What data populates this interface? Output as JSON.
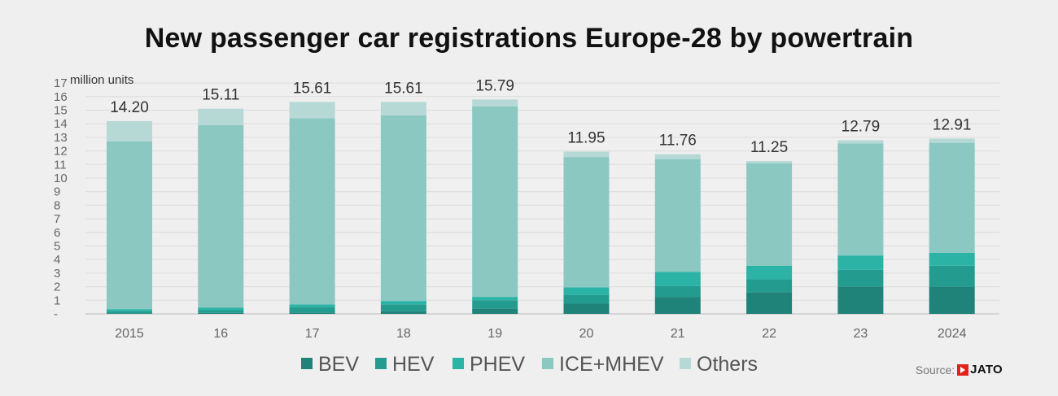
{
  "title": "New passenger car registrations Europe-28 by powertrain",
  "source": {
    "label": "Source:",
    "logo_text": "JATO"
  },
  "chart_data": {
    "type": "bar",
    "stacked": true,
    "title": "New passenger car registrations Europe-28 by powertrain",
    "unit_label": "million units",
    "xlabel": "",
    "ylabel": "",
    "ylim": [
      0,
      17
    ],
    "y_tick_labels": [
      "-",
      "1",
      "2",
      "3",
      "4",
      "5",
      "6",
      "7",
      "8",
      "9",
      "10",
      "11",
      "12",
      "13",
      "14",
      "15",
      "16",
      "17"
    ],
    "grid": true,
    "legend_position": "bottom",
    "categories": [
      "2015",
      "16",
      "17",
      "18",
      "19",
      "20",
      "21",
      "22",
      "23",
      "2024"
    ],
    "totals": [
      "14.20",
      "15.11",
      "15.61",
      "15.61",
      "15.79",
      "11.95",
      "11.76",
      "11.25",
      "12.79",
      "12.91"
    ],
    "series": [
      {
        "name": "BEV",
        "color": "#1f8379",
        "values": [
          0.05,
          0.07,
          0.1,
          0.2,
          0.4,
          0.75,
          1.25,
          1.6,
          2.0,
          2.0
        ]
      },
      {
        "name": "HEV",
        "color": "#239c8f",
        "values": [
          0.15,
          0.2,
          0.4,
          0.5,
          0.6,
          0.65,
          0.8,
          0.95,
          1.25,
          1.55
        ]
      },
      {
        "name": "PHEV",
        "color": "#2bb3a6",
        "values": [
          0.15,
          0.2,
          0.2,
          0.25,
          0.25,
          0.55,
          1.05,
          1.0,
          1.05,
          0.95
        ]
      },
      {
        "name": "ICE+MHEV",
        "color": "#8ac8c1",
        "values": [
          12.35,
          13.43,
          13.71,
          13.66,
          14.04,
          9.6,
          8.3,
          7.55,
          8.25,
          8.1
        ]
      },
      {
        "name": "Others",
        "color": "#b6d9d6",
        "values": [
          1.5,
          1.21,
          1.2,
          1.0,
          0.5,
          0.4,
          0.36,
          0.15,
          0.24,
          0.31
        ]
      }
    ]
  }
}
